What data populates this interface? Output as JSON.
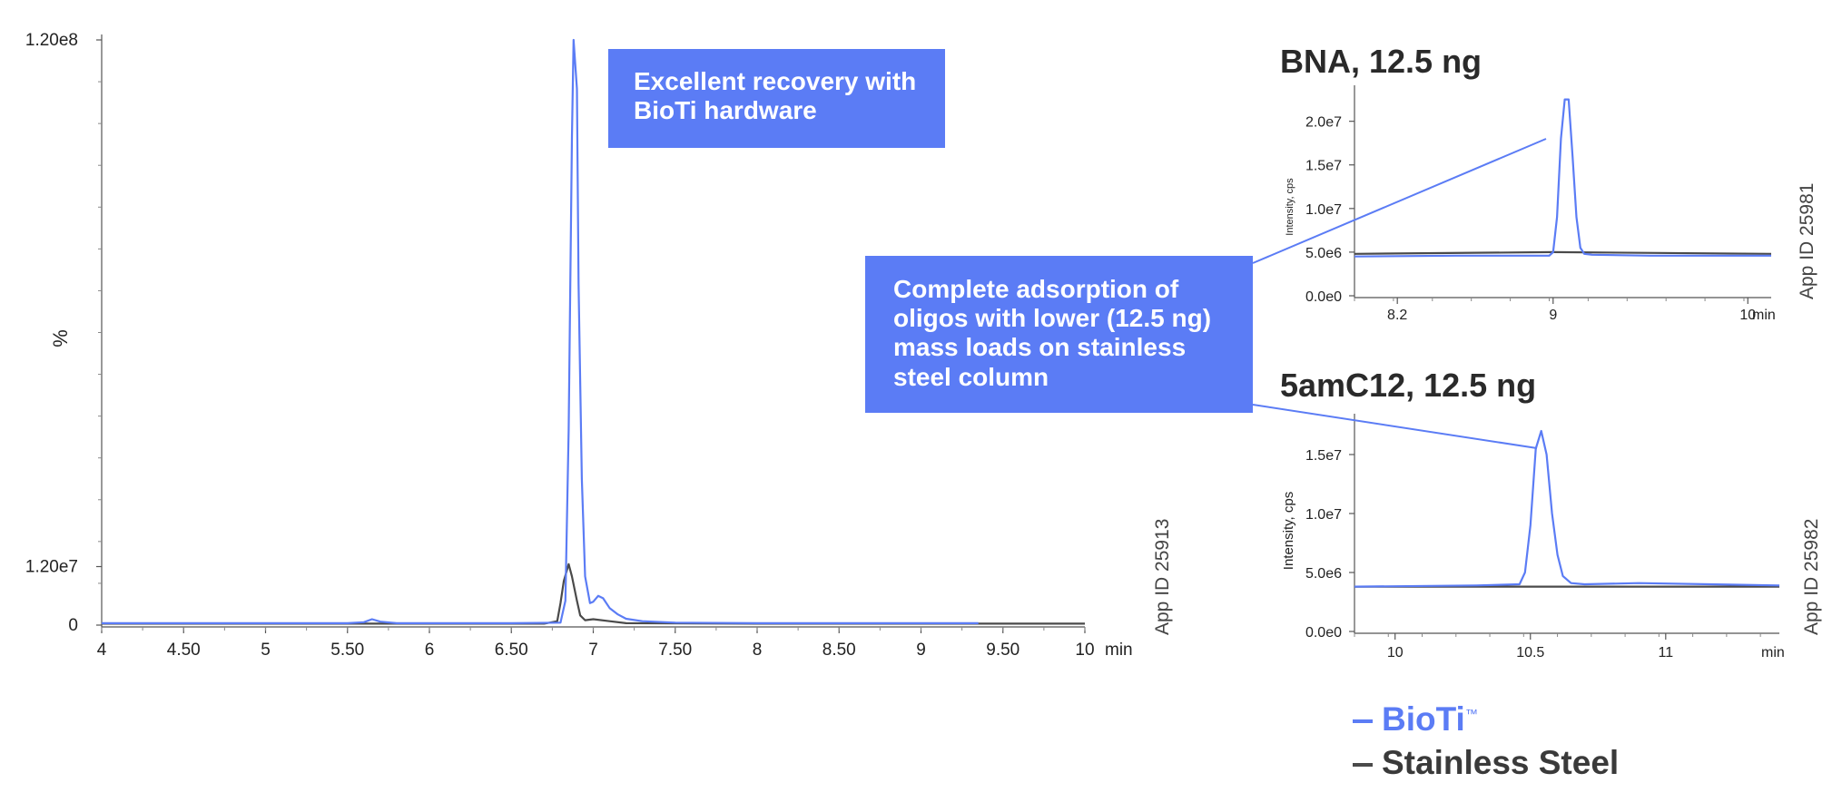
{
  "colors": {
    "bioti": "#5b7cf5",
    "steel": "#4a4a4a",
    "callout_bg": "#5b7cf5"
  },
  "callouts": {
    "top": [
      "Excellent recovery with",
      "BioTi hardware"
    ],
    "middle": [
      "Complete adsorption of",
      "oligos with lower (12.5 ng)",
      "mass loads on stainless",
      "steel column"
    ]
  },
  "legend": [
    {
      "name": "BioTi",
      "mark": "™",
      "color": "#5b7cf5"
    },
    {
      "name": "Stainless Steel",
      "mark": "",
      "color": "#4a4a4a"
    }
  ],
  "chart_data": [
    {
      "id": "main",
      "type": "line",
      "title": "",
      "xlabel": "min",
      "ylabel": "%",
      "app_id": "App ID 25913",
      "xlim": [
        4,
        10
      ],
      "ylim": [
        0,
        120000000
      ],
      "x_ticks": [
        4,
        4.5,
        5,
        5.5,
        6,
        6.5,
        7,
        7.5,
        8,
        8.5,
        9,
        9.5,
        10
      ],
      "x_tick_labels": [
        "4",
        "4.50",
        "5",
        "5.50",
        "6",
        "6.50",
        "7",
        "7.50",
        "8",
        "8.50",
        "9",
        "9.50",
        "10"
      ],
      "y_ticks": [
        0,
        12000000,
        120000000
      ],
      "y_tick_labels": [
        "0",
        "1.20e7",
        "1.20e8"
      ],
      "series": [
        {
          "name": "BioTi",
          "color": "#5b7cf5",
          "x": [
            4.0,
            5.5,
            5.6,
            5.65,
            5.7,
            5.8,
            6.5,
            6.8,
            6.83,
            6.85,
            6.87,
            6.88,
            6.9,
            6.91,
            6.93,
            6.95,
            6.98,
            7.0,
            7.03,
            7.06,
            7.1,
            7.15,
            7.2,
            7.3,
            7.5,
            8.0,
            9.0,
            9.35
          ],
          "y": [
            400000,
            400000,
            600000,
            1200000,
            700000,
            400000,
            400000,
            500000,
            5000000,
            40000000,
            100000000,
            120000000,
            110000000,
            70000000,
            30000000,
            10000000,
            4500000,
            4800000,
            6000000,
            5500000,
            3500000,
            2200000,
            1300000,
            800000,
            500000,
            400000,
            400000,
            400000
          ]
        },
        {
          "name": "Stainless Steel",
          "color": "#4a4a4a",
          "x": [
            4.0,
            6.7,
            6.78,
            6.8,
            6.82,
            6.85,
            6.87,
            6.9,
            6.92,
            6.95,
            7.0,
            7.1,
            7.2,
            8.0,
            10.0
          ],
          "y": [
            300000,
            300000,
            800000,
            4500000,
            9000000,
            12500000,
            10000000,
            5000000,
            2000000,
            1000000,
            1200000,
            800000,
            400000,
            300000,
            300000
          ]
        }
      ]
    },
    {
      "id": "bna",
      "type": "line",
      "title": "BNA, 12.5 ng",
      "xlabel": "min",
      "ylabel": "Intensity, cps",
      "app_id": "App ID 25981",
      "xlim": [
        7.98,
        10.12
      ],
      "ylim": [
        0,
        23500000
      ],
      "x_ticks": [
        8.2,
        9,
        10
      ],
      "x_tick_labels": [
        "8.2",
        "9",
        "10"
      ],
      "y_ticks": [
        0,
        5000000,
        10000000,
        15000000,
        20000000
      ],
      "y_tick_labels": [
        "0.0e0",
        "5.0e6",
        "1.0e7",
        "1.5e7",
        "2.0e7"
      ],
      "series": [
        {
          "name": "BioTi",
          "color": "#5b7cf5",
          "x": [
            7.98,
            8.5,
            8.98,
            9.0,
            9.02,
            9.04,
            9.06,
            9.08,
            9.1,
            9.12,
            9.14,
            9.16,
            9.2,
            9.5,
            10.12
          ],
          "y": [
            4500000,
            4600000,
            4600000,
            5000000,
            9000000,
            18000000,
            22500000,
            22500000,
            16000000,
            9000000,
            5500000,
            4800000,
            4700000,
            4600000,
            4600000
          ]
        },
        {
          "name": "Stainless Steel",
          "color": "#4a4a4a",
          "x": [
            7.98,
            9.0,
            10.12
          ],
          "y": [
            4800000,
            5000000,
            4800000
          ]
        }
      ]
    },
    {
      "id": "amc",
      "type": "line",
      "title": "5amC12, 12.5 ng",
      "xlabel": "min",
      "ylabel": "Intensity, cps",
      "app_id": "App ID 25982",
      "xlim": [
        9.85,
        11.42
      ],
      "ylim": [
        0,
        18000000
      ],
      "x_ticks": [
        10,
        10.5,
        11
      ],
      "x_tick_labels": [
        "10",
        "10.5",
        "11"
      ],
      "y_ticks": [
        0,
        5000000,
        10000000,
        15000000
      ],
      "y_tick_labels": [
        "0.0e0",
        "5.0e6",
        "1.0e7",
        "1.5e7"
      ],
      "series": [
        {
          "name": "BioTi",
          "color": "#5b7cf5",
          "x": [
            9.85,
            10.3,
            10.46,
            10.48,
            10.5,
            10.52,
            10.54,
            10.56,
            10.58,
            10.6,
            10.62,
            10.65,
            10.7,
            10.9,
            11.42
          ],
          "y": [
            3800000,
            3900000,
            4000000,
            5000000,
            9000000,
            15500000,
            17000000,
            15000000,
            10000000,
            6500000,
            4700000,
            4100000,
            4000000,
            4100000,
            3900000
          ]
        },
        {
          "name": "Stainless Steel",
          "color": "#4a4a4a",
          "x": [
            9.85,
            10.5,
            11.42
          ],
          "y": [
            3800000,
            3800000,
            3800000
          ]
        }
      ]
    }
  ]
}
